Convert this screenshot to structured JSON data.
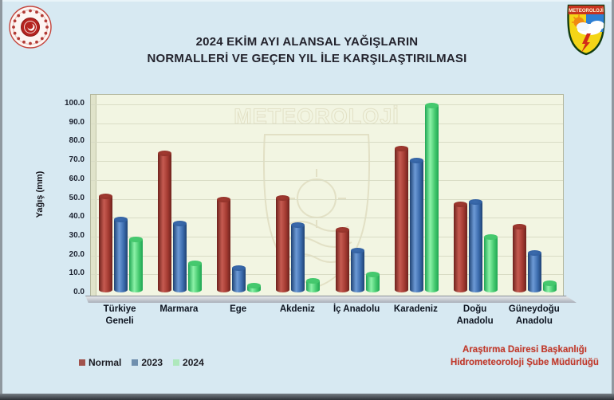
{
  "page": {
    "background": "#d7e9f2",
    "frame_color": "#2d3237"
  },
  "header": {
    "title_line1": "2024 EKİM AYI ALANSAL YAĞIŞLARIN",
    "title_line2": "NORMALLERİ VE GEÇEN YIL İLE KARŞILAŞTIRILMASI"
  },
  "logos": {
    "left": "ministry-seal",
    "right": "meteoroloji-shield",
    "right_label": "METEOROLOJİ"
  },
  "watermark": {
    "text": "METEOROLOJİ"
  },
  "chart_data": {
    "type": "bar",
    "title": "2024 EKİM AYI ALANSAL YAĞIŞLARIN NORMALLERİ VE GEÇEN YIL İLE KARŞILAŞTIRILMASI",
    "xlabel": "",
    "ylabel": "Yağış (mm)",
    "ylim": [
      0,
      100
    ],
    "ytick_step": 10,
    "yticks": [
      "0.0",
      "10.0",
      "20.0",
      "30.0",
      "40.0",
      "50.0",
      "60.0",
      "70.0",
      "80.0",
      "90.0",
      "100.0"
    ],
    "grid": true,
    "legend_position": "bottom-left",
    "plot_background": "#f2f5e2",
    "categories": [
      "Türkiye\nGeneli",
      "Marmara",
      "Ege",
      "Akdeniz",
      "İç Anadolu",
      "Karadeniz",
      "Doğu\nAnadolu",
      "Güneydoğu\nAnadolu"
    ],
    "series": [
      {
        "name": "Normal",
        "values": [
          51,
          73.5,
          49,
          50,
          33,
          76,
          46.5,
          35
        ],
        "color_dark": "#6e221d",
        "color_light": "#c65b51",
        "color_mid": "#a33a31",
        "color_cap": "#8a2f27"
      },
      {
        "name": "2023",
        "values": [
          38.5,
          36.5,
          13,
          35.5,
          22,
          70,
          48,
          21
        ],
        "color_dark": "#1e4273",
        "color_light": "#6d9ad6",
        "color_mid": "#3c6cae",
        "color_cap": "#2c5a9a"
      },
      {
        "name": "2024",
        "values": [
          28,
          15.5,
          3.5,
          6,
          9.5,
          99,
          29.5,
          5
        ],
        "color_dark": "#1fa653",
        "color_light": "#8df2a8",
        "color_mid": "#46ca70",
        "color_cap": "#41c468"
      }
    ]
  },
  "legend": {
    "items": [
      {
        "label": "Normal",
        "color": "#a1524c"
      },
      {
        "label": "2023",
        "color": "#6f8fae"
      },
      {
        "label": "2024",
        "color": "#aee8bc"
      }
    ]
  },
  "footer": {
    "credit_line1": "Araştırma Dairesi Başkanlığı",
    "credit_line2": "Hidrometeoroloji Şube Müdürlüğü",
    "credit_color": "#c0392b"
  }
}
